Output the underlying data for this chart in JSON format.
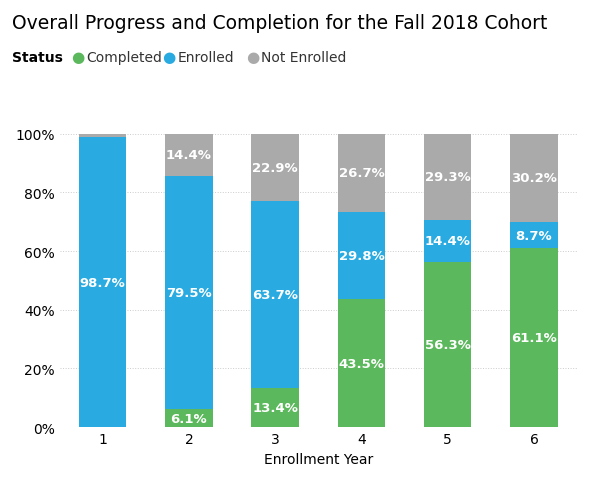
{
  "title": "Overall Progress and Completion for the Fall 2018 Cohort",
  "xlabel": "Enrollment Year",
  "ylabel": "",
  "categories": [
    1,
    2,
    3,
    4,
    5,
    6
  ],
  "completed": [
    0.0,
    6.1,
    13.4,
    43.5,
    56.3,
    61.1
  ],
  "enrolled": [
    98.7,
    79.5,
    63.7,
    29.8,
    14.4,
    8.7
  ],
  "not_enrolled": [
    1.3,
    14.4,
    22.9,
    26.7,
    29.3,
    30.2
  ],
  "color_completed": "#5cb85c",
  "color_enrolled": "#29abe2",
  "color_not_enrolled": "#aaaaaa",
  "bar_width": 0.55,
  "yticks": [
    0,
    20,
    40,
    60,
    80,
    100
  ],
  "ytick_labels": [
    "0%",
    "20%",
    "40%",
    "60%",
    "80%",
    "100%"
  ],
  "background_color": "#ffffff",
  "title_fontsize": 13.5,
  "label_fontsize": 10,
  "tick_fontsize": 10,
  "annotation_fontsize": 9.5,
  "legend_fontsize": 10,
  "status_label": "Status",
  "show_not_enrolled_label": [
    false,
    true,
    true,
    true,
    true,
    true
  ]
}
